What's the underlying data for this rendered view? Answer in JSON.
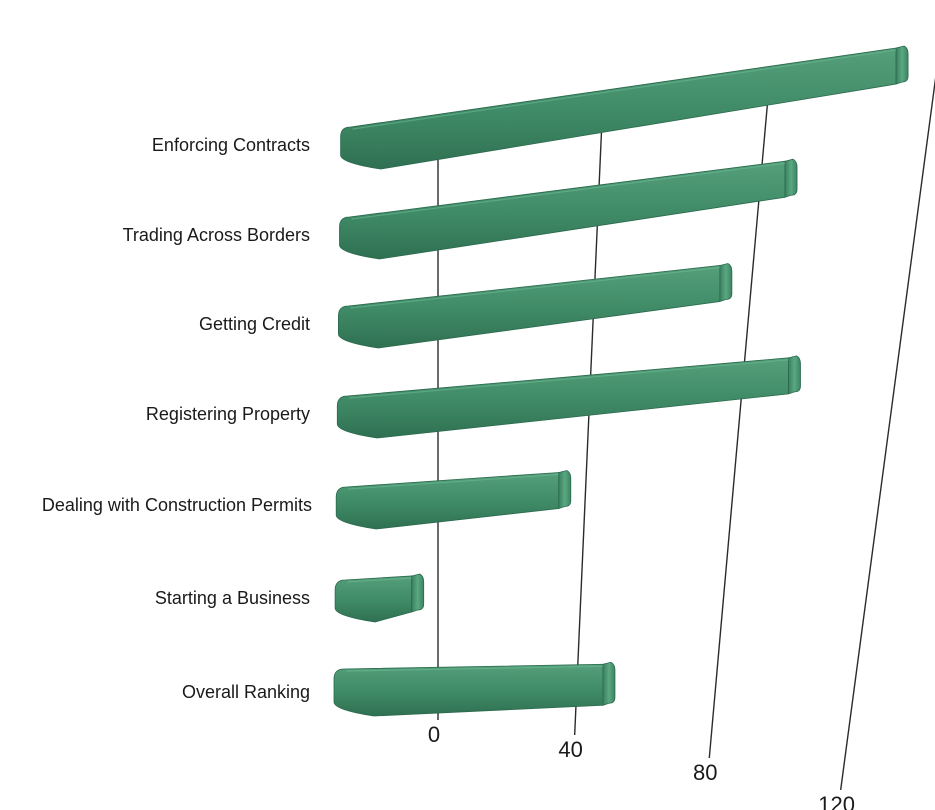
{
  "chart_data": {
    "type": "bar",
    "orientation": "horizontal",
    "style": "3d-perspective",
    "title": "",
    "xlabel": "",
    "ylabel": "",
    "categories": [
      "Overall Ranking",
      "Starting a Business",
      "Dealing with Construction Permits",
      "Registering Property",
      "Getting Credit",
      "Trading Across Borders",
      "Enforcing Contracts"
    ],
    "series": [
      {
        "values": [
          51,
          -4,
          36,
          95,
          75,
          89,
          113
        ]
      }
    ],
    "xticks": [
      0,
      40,
      80,
      120
    ],
    "xlim": [
      -28,
      120
    ],
    "grid": true,
    "legend": "none",
    "colors": {
      "bar_front": "#3f8a66",
      "bar_top": "#5aa880",
      "bar_bottom": "#2c6a4c",
      "bar_end": "#4f9e78",
      "bar_outline": "#2b6a4d"
    }
  }
}
